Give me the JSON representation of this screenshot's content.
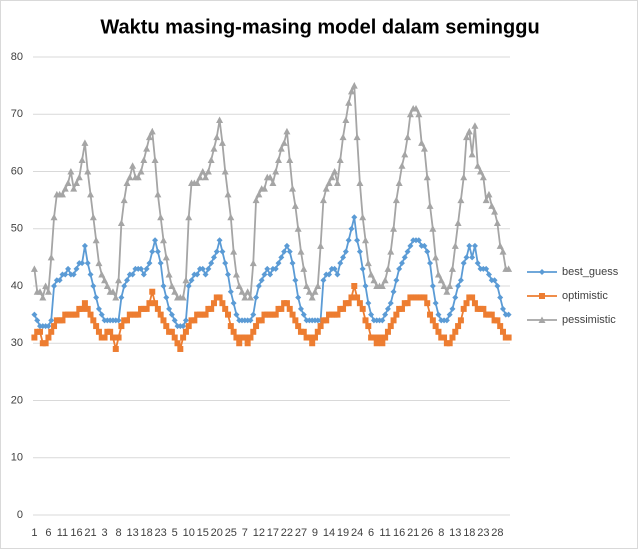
{
  "chart_data": {
    "type": "line",
    "title": "Waktu masing-masing model dalam seminggu",
    "categories": [
      1,
      null,
      null,
      null,
      null,
      6,
      null,
      null,
      null,
      null,
      11,
      null,
      null,
      null,
      null,
      16,
      null,
      null,
      null,
      null,
      21,
      null,
      null,
      null,
      null,
      3,
      null,
      null,
      null,
      null,
      8,
      null,
      null,
      null,
      null,
      13,
      null,
      null,
      null,
      null,
      18,
      null,
      null,
      null,
      null,
      23,
      null,
      null,
      null,
      null,
      5,
      null,
      null,
      null,
      null,
      10,
      null,
      null,
      null,
      null,
      15,
      null,
      null,
      null,
      null,
      20,
      null,
      null,
      null,
      null,
      25,
      null,
      null,
      null,
      null,
      7,
      null,
      null,
      null,
      null,
      12,
      null,
      null,
      null,
      null,
      17,
      null,
      null,
      null,
      null,
      22,
      null,
      null,
      null,
      null,
      27,
      null,
      null,
      null,
      null,
      9,
      null,
      null,
      null,
      null,
      14,
      null,
      null,
      null,
      null,
      19,
      null,
      null,
      null,
      null,
      24,
      null,
      null,
      null,
      null,
      6,
      null,
      null,
      null,
      null,
      11,
      null,
      null,
      null,
      null,
      16,
      null,
      null,
      null,
      null,
      21,
      null,
      null,
      null,
      null,
      26,
      null,
      null,
      null,
      null,
      8,
      null,
      null,
      null,
      null,
      13,
      null,
      null,
      null,
      null,
      18,
      null,
      null,
      null,
      null,
      23,
      null,
      null,
      null,
      null,
      28,
      null,
      null,
      null,
      null
    ],
    "series": [
      {
        "name": "best_guess",
        "color": "#5b9bd5",
        "marker": "diamond",
        "values": [
          35,
          34,
          33,
          33,
          33,
          33,
          34,
          40,
          41,
          41,
          42,
          42,
          43,
          42,
          42,
          43,
          44,
          44,
          47,
          44,
          42,
          40,
          38,
          36,
          35,
          34,
          34,
          34,
          34,
          34,
          34,
          38,
          40,
          41,
          42,
          42,
          43,
          43,
          43,
          42,
          43,
          44,
          46,
          48,
          46,
          44,
          40,
          38,
          36,
          35,
          34,
          33,
          33,
          33,
          34,
          40,
          41,
          42,
          42,
          43,
          43,
          42,
          43,
          44,
          45,
          46,
          48,
          46,
          44,
          42,
          39,
          37,
          35,
          34,
          34,
          34,
          34,
          34,
          35,
          38,
          40,
          41,
          42,
          43,
          42,
          43,
          43,
          44,
          45,
          46,
          47,
          46,
          44,
          41,
          38,
          36,
          35,
          34,
          34,
          34,
          34,
          34,
          34,
          41,
          42,
          42,
          43,
          43,
          42,
          44,
          45,
          46,
          48,
          50,
          52,
          48,
          46,
          43,
          40,
          37,
          35,
          34,
          34,
          34,
          34,
          35,
          36,
          37,
          39,
          41,
          43,
          44,
          45,
          46,
          47,
          48,
          48,
          48,
          47,
          47,
          46,
          44,
          40,
          37,
          35,
          34,
          34,
          34,
          35,
          36,
          38,
          40,
          41,
          44,
          45,
          47,
          45,
          47,
          44,
          43,
          43,
          43,
          42,
          41,
          41,
          40,
          38,
          36,
          35,
          35
        ]
      },
      {
        "name": "optimistic",
        "color": "#ed7d31",
        "marker": "square",
        "values": [
          31,
          32,
          32,
          30,
          30,
          31,
          32,
          33,
          34,
          34,
          34,
          35,
          35,
          35,
          35,
          35,
          36,
          36,
          37,
          36,
          35,
          34,
          33,
          32,
          31,
          31,
          32,
          32,
          31,
          29,
          31,
          33,
          34,
          34,
          35,
          35,
          35,
          35,
          36,
          36,
          36,
          37,
          39,
          37,
          36,
          35,
          34,
          33,
          32,
          32,
          31,
          30,
          29,
          31,
          32,
          33,
          34,
          34,
          35,
          35,
          35,
          35,
          36,
          36,
          37,
          38,
          38,
          37,
          36,
          35,
          33,
          32,
          31,
          30,
          31,
          31,
          30,
          31,
          32,
          33,
          34,
          34,
          35,
          35,
          35,
          35,
          35,
          36,
          36,
          37,
          37,
          36,
          35,
          34,
          33,
          32,
          32,
          31,
          31,
          30,
          31,
          32,
          33,
          34,
          34,
          35,
          35,
          35,
          35,
          36,
          36,
          37,
          37,
          38,
          40,
          38,
          37,
          36,
          34,
          33,
          31,
          31,
          30,
          31,
          30,
          31,
          32,
          33,
          34,
          35,
          36,
          36,
          37,
          37,
          38,
          38,
          38,
          38,
          38,
          38,
          37,
          35,
          34,
          33,
          32,
          31,
          31,
          30,
          30,
          31,
          32,
          33,
          34,
          36,
          37,
          38,
          38,
          37,
          36,
          36,
          36,
          35,
          35,
          35,
          34,
          34,
          33,
          32,
          31,
          31
        ]
      },
      {
        "name": "pessimistic",
        "color": "#a5a5a5",
        "marker": "triangle",
        "values": [
          43,
          39,
          39,
          38,
          40,
          39,
          45,
          52,
          56,
          56,
          56,
          57,
          58,
          60,
          57,
          58,
          59,
          62,
          65,
          60,
          56,
          52,
          48,
          44,
          42,
          41,
          40,
          39,
          39,
          38,
          41,
          51,
          55,
          58,
          59,
          61,
          59,
          59,
          60,
          62,
          64,
          66,
          67,
          62,
          56,
          52,
          48,
          45,
          42,
          40,
          39,
          38,
          38,
          38,
          41,
          52,
          58,
          58,
          58,
          59,
          60,
          59,
          60,
          62,
          64,
          66,
          69,
          65,
          60,
          56,
          52,
          46,
          42,
          40,
          39,
          38,
          39,
          38,
          44,
          55,
          56,
          57,
          57,
          59,
          59,
          58,
          60,
          62,
          64,
          65,
          67,
          62,
          57,
          54,
          50,
          46,
          43,
          40,
          39,
          38,
          39,
          40,
          47,
          55,
          57,
          58,
          59,
          60,
          58,
          62,
          66,
          69,
          72,
          74,
          75,
          66,
          58,
          52,
          48,
          44,
          42,
          41,
          40,
          40,
          40,
          41,
          43,
          46,
          50,
          55,
          58,
          61,
          63,
          66,
          70,
          71,
          71,
          70,
          65,
          64,
          59,
          54,
          50,
          45,
          42,
          41,
          40,
          39,
          40,
          43,
          47,
          51,
          55,
          59,
          66,
          67,
          63,
          68,
          61,
          60,
          59,
          55,
          56,
          54,
          53,
          51,
          47,
          46,
          43,
          43
        ]
      }
    ],
    "ylim": [
      0,
      80
    ],
    "yticks": [
      0,
      10,
      20,
      30,
      40,
      50,
      60,
      70,
      80
    ],
    "grid": true,
    "legend": "right"
  }
}
